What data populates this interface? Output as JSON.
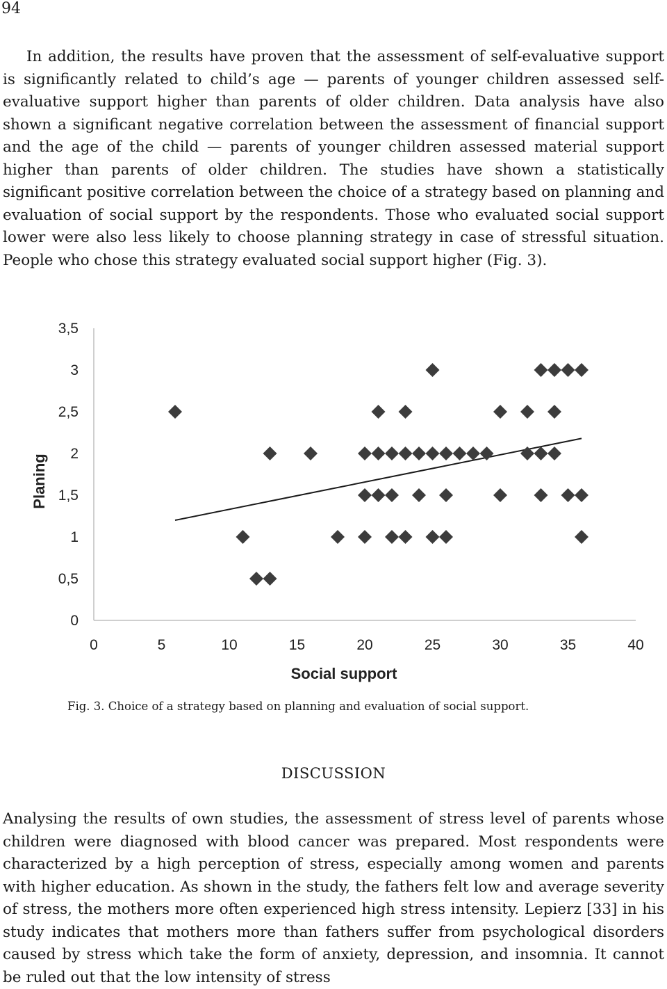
{
  "page_number": "94",
  "paragraph_1": "In addition, the results have proven that the assessment of self-evaluative support is significantly related to child’s age — parents of younger children assessed self-evaluative support higher than parents of older children. Data analysis have also shown a significant negative correlation between the assessment of financial support and the age of the child — parents of younger children assessed material support higher than parents of older children. The studies have shown a statistically significant positive correlation between the choice of a strategy based on planning and evaluation of social support by the respondents. Those who evaluated social support lower were also less likely to choose planning strategy in case of stressful situation. People who chose this strategy evaluated social support higher (Fig. 3).",
  "figure_caption": "Fig. 3. Choice of a strategy based on planning and evaluation of social support.",
  "heading": "DISCUSSION",
  "paragraph_2": "Analysing the results of own studies, the assessment of stress level of parents whose children were diagnosed with blood cancer was prepared. Most respondents were characterized by a high perception of stress, especially among women and parents with higher education. As shown in the study, the fathers felt low and average severity of stress, the mothers more often experienced high stress intensity. Lepierz [33] in his study indicates that mothers more than fathers suffer from psychological disorders caused by stress which take the form of anxiety, depression, and insomnia. It cannot be ruled out that the low intensity of stress",
  "chart_data": {
    "type": "scatter",
    "title": "",
    "xlabel": "Social support",
    "ylabel": "Planing",
    "xlim": [
      0,
      40
    ],
    "ylim": [
      0,
      3.5
    ],
    "x_ticks": [
      "0",
      "5",
      "10",
      "15",
      "20",
      "25",
      "30",
      "35",
      "40"
    ],
    "y_ticks": [
      "0",
      "0,5",
      "1",
      "1,5",
      "2",
      "2,5",
      "3",
      "3,5"
    ],
    "grid": false,
    "marker": "diamond",
    "marker_color": "#3c3c3c",
    "points": [
      [
        25,
        3
      ],
      [
        33,
        3
      ],
      [
        34,
        3
      ],
      [
        35,
        3
      ],
      [
        36,
        3
      ],
      [
        6,
        2.5
      ],
      [
        21,
        2.5
      ],
      [
        23,
        2.5
      ],
      [
        30,
        2.5
      ],
      [
        32,
        2.5
      ],
      [
        34,
        2.5
      ],
      [
        13,
        2
      ],
      [
        16,
        2
      ],
      [
        20,
        2
      ],
      [
        21,
        2
      ],
      [
        22,
        2
      ],
      [
        23,
        2
      ],
      [
        24,
        2
      ],
      [
        25,
        2
      ],
      [
        26,
        2
      ],
      [
        27,
        2
      ],
      [
        28,
        2
      ],
      [
        29,
        2
      ],
      [
        32,
        2
      ],
      [
        33,
        2
      ],
      [
        34,
        2
      ],
      [
        20,
        1.5
      ],
      [
        21,
        1.5
      ],
      [
        22,
        1.5
      ],
      [
        24,
        1.5
      ],
      [
        26,
        1.5
      ],
      [
        30,
        1.5
      ],
      [
        33,
        1.5
      ],
      [
        35,
        1.5
      ],
      [
        36,
        1.5
      ],
      [
        11,
        1
      ],
      [
        18,
        1
      ],
      [
        20,
        1
      ],
      [
        22,
        1
      ],
      [
        23,
        1
      ],
      [
        25,
        1
      ],
      [
        26,
        1
      ],
      [
        36,
        1
      ],
      [
        12,
        0.5
      ],
      [
        13,
        0.5
      ]
    ],
    "trendline": {
      "x": [
        6,
        36
      ],
      "y": [
        1.2,
        2.18
      ]
    }
  }
}
